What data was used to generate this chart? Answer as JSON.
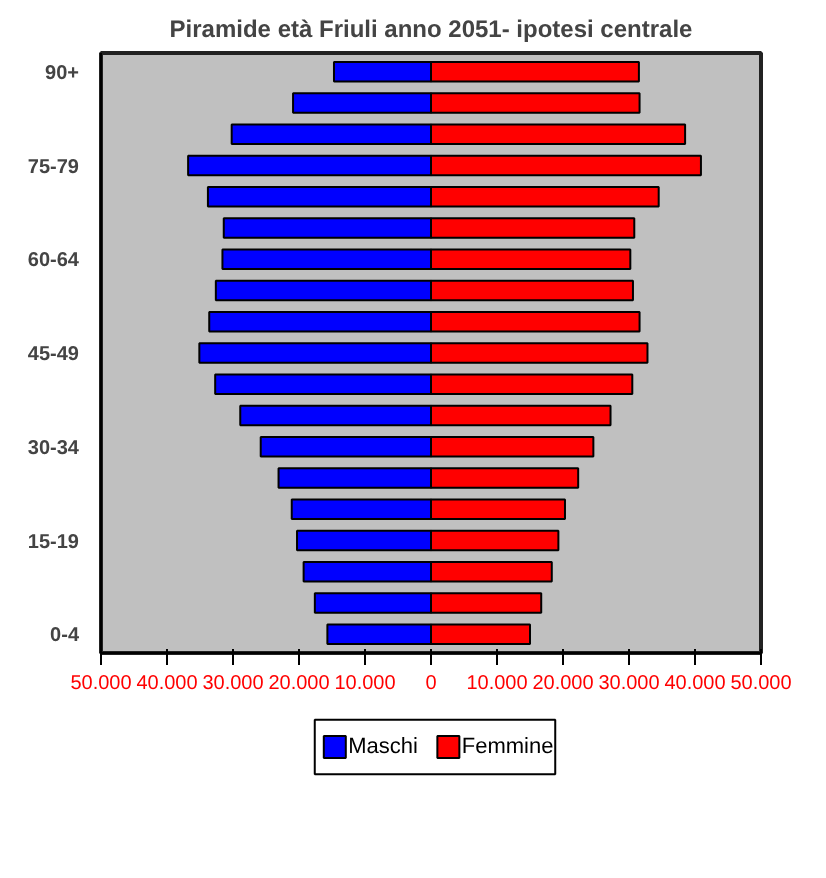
{
  "chart_data": {
    "type": "bar",
    "orientation": "horizontal",
    "title": "Piramide età Friuli anno 2051- ipotesi centrale",
    "categories": [
      "90+",
      null,
      null,
      "75-79",
      null,
      null,
      "60-64",
      null,
      null,
      "45-49",
      null,
      null,
      "30-34",
      null,
      null,
      "15-19",
      null,
      null,
      "0-4"
    ],
    "series": [
      {
        "name": "Maschi",
        "color": "#0000ff",
        "values": [
          -14700,
          -20900,
          -30200,
          -36800,
          -33800,
          -31400,
          -31600,
          -32600,
          -33600,
          -35100,
          -32700,
          -28900,
          -25800,
          -23100,
          -21100,
          -20300,
          -19300,
          -17600,
          -15700
        ]
      },
      {
        "name": "Femmine",
        "color": "#ff0000",
        "values": [
          31500,
          31600,
          38500,
          40900,
          34500,
          30800,
          30200,
          30600,
          31600,
          32800,
          30500,
          27200,
          24600,
          22300,
          20300,
          19300,
          18300,
          16700,
          15000
        ]
      }
    ],
    "xlim": [
      -50000,
      50000
    ],
    "xticks": [
      {
        "value": -50000,
        "label": "50.000"
      },
      {
        "value": -40000,
        "label": "40.000"
      },
      {
        "value": -30000,
        "label": "30.000"
      },
      {
        "value": -20000,
        "label": "20.000"
      },
      {
        "value": -10000,
        "label": "10.000"
      },
      0,
      {
        "value": 10000,
        "label": "10.000"
      },
      {
        "value": 20000,
        "label": "20.000"
      },
      {
        "value": 30000,
        "label": "30.000"
      },
      {
        "value": 40000,
        "label": "40.000"
      },
      {
        "value": 50000,
        "label": "50.000"
      }
    ],
    "grid": false,
    "stacked": true,
    "legend": "bottom"
  }
}
